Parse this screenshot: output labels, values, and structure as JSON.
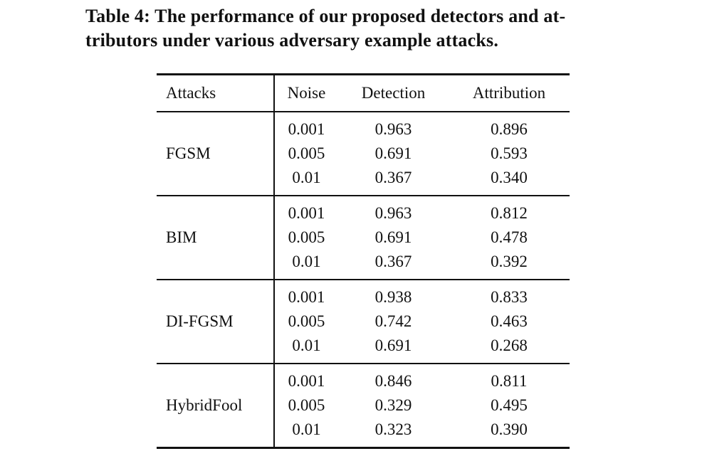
{
  "caption": {
    "line1": "Table 4: The performance of our proposed detectors and at-",
    "line2": "tributors under various adversary example attacks."
  },
  "table": {
    "headers": {
      "attacks": "Attacks",
      "noise": "Noise",
      "detection": "Detection",
      "attribution": "Attribution"
    },
    "groups": [
      {
        "attack": "FGSM",
        "rows": [
          {
            "noise": "0.001",
            "detection": "0.963",
            "attribution": "0.896"
          },
          {
            "noise": "0.005",
            "detection": "0.691",
            "attribution": "0.593"
          },
          {
            "noise": "0.01",
            "detection": "0.367",
            "attribution": "0.340"
          }
        ]
      },
      {
        "attack": "BIM",
        "rows": [
          {
            "noise": "0.001",
            "detection": "0.963",
            "attribution": "0.812"
          },
          {
            "noise": "0.005",
            "detection": "0.691",
            "attribution": "0.478"
          },
          {
            "noise": "0.01",
            "detection": "0.367",
            "attribution": "0.392"
          }
        ]
      },
      {
        "attack": "DI-FGSM",
        "rows": [
          {
            "noise": "0.001",
            "detection": "0.938",
            "attribution": "0.833"
          },
          {
            "noise": "0.005",
            "detection": "0.742",
            "attribution": "0.463"
          },
          {
            "noise": "0.01",
            "detection": "0.691",
            "attribution": "0.268"
          }
        ]
      },
      {
        "attack": "HybridFool",
        "rows": [
          {
            "noise": "0.001",
            "detection": "0.846",
            "attribution": "0.811"
          },
          {
            "noise": "0.005",
            "detection": "0.329",
            "attribution": "0.495"
          },
          {
            "noise": "0.01",
            "detection": "0.323",
            "attribution": "0.390"
          }
        ]
      }
    ]
  },
  "colors": {
    "background": "#ffffff",
    "text": "#111111",
    "rule": "#111111"
  }
}
